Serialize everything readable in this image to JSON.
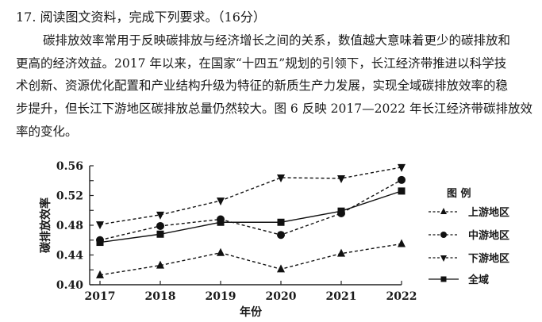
{
  "question": {
    "number": "17.",
    "title": "阅读图文资料，完成下列要求。（16分）",
    "paragraph_lines": [
      "碳排放效率常用于反映碳排放与经济增长之间的关系，数值越大意味着更少的碳排放和",
      "更高的经济效益。2017 年以来，在国家“十四五”规划的引领下，长江经济带推进以科学技",
      "术创新、资源优化配置和产业结构升级为特征的新质生产力发展，实现全域碳排放效率的稳",
      "步提升，但长江下游地区碳排放总量仍然较大。图 6 反映 2017—2022 年长江经济带碳排放效",
      "率的变化。"
    ]
  },
  "chart_data": {
    "type": "line",
    "title": "",
    "xlabel": "年份",
    "ylabel": "碳排放效率",
    "categories": [
      "2017",
      "2018",
      "2019",
      "2020",
      "2021",
      "2022"
    ],
    "ylim": [
      0.4,
      0.56
    ],
    "yticks": [
      "0.56",
      "0.52",
      "0.48",
      "0.44",
      "0.40"
    ],
    "grid": false,
    "legend_title": "图 例",
    "legend_position": "right",
    "series": [
      {
        "name": "上游地区",
        "marker": "triangle-up",
        "line": "dashed",
        "values": [
          0.413,
          0.426,
          0.443,
          0.421,
          0.442,
          0.455
        ]
      },
      {
        "name": "中游地区",
        "marker": "circle",
        "line": "dashed",
        "values": [
          0.46,
          0.479,
          0.488,
          0.467,
          0.496,
          0.541
        ]
      },
      {
        "name": "下游地区",
        "marker": "triangle-down",
        "line": "dashed",
        "values": [
          0.481,
          0.494,
          0.513,
          0.544,
          0.543,
          0.558
        ]
      },
      {
        "name": "全域",
        "marker": "square",
        "line": "solid",
        "values": [
          0.457,
          0.468,
          0.484,
          0.484,
          0.499,
          0.526
        ]
      }
    ]
  }
}
